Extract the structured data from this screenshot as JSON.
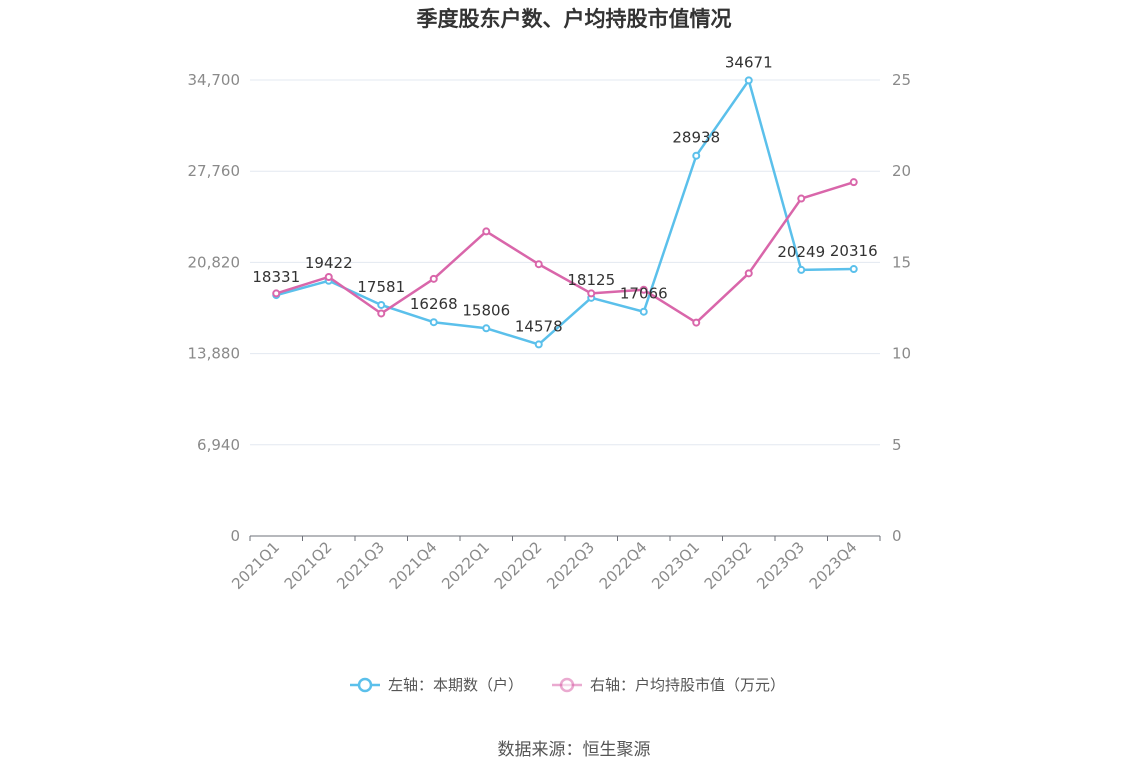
{
  "chart_data": {
    "type": "line",
    "title": "季度股东户数、户均持股市值情况",
    "categories": [
      "2021Q1",
      "2021Q2",
      "2021Q3",
      "2021Q4",
      "2022Q1",
      "2022Q2",
      "2022Q3",
      "2022Q4",
      "2023Q1",
      "2023Q2",
      "2023Q3",
      "2023Q4"
    ],
    "y_left": {
      "ticks": [
        "0",
        "6,940",
        "13,880",
        "20,820",
        "27,760",
        "34,700"
      ],
      "ylim": [
        0,
        34700
      ]
    },
    "y_right": {
      "ticks": [
        "0",
        "5",
        "10",
        "15",
        "20",
        "25"
      ],
      "ylim": [
        0,
        25
      ]
    },
    "series": [
      {
        "name": "左轴：本期数（户）",
        "axis": "left",
        "color": "#5bc0eb",
        "values": [
          18331,
          19422,
          17581,
          16268,
          15806,
          14578,
          18125,
          17066,
          28938,
          34671,
          20249,
          20316
        ],
        "labels": [
          "18331",
          "19422",
          "17581",
          "16268",
          "15806",
          "14578",
          "18125",
          "17066",
          "28938",
          "34671",
          "20249",
          "20316"
        ]
      },
      {
        "name": "右轴：户均持股市值（万元）",
        "axis": "right",
        "color": "#d966aa",
        "values": [
          13.3,
          14.2,
          12.2,
          14.1,
          16.7,
          14.9,
          13.3,
          13.5,
          11.7,
          14.4,
          18.5,
          19.4
        ]
      }
    ],
    "grid": true,
    "legend_position": "bottom"
  },
  "source": "数据来源：恒生聚源"
}
